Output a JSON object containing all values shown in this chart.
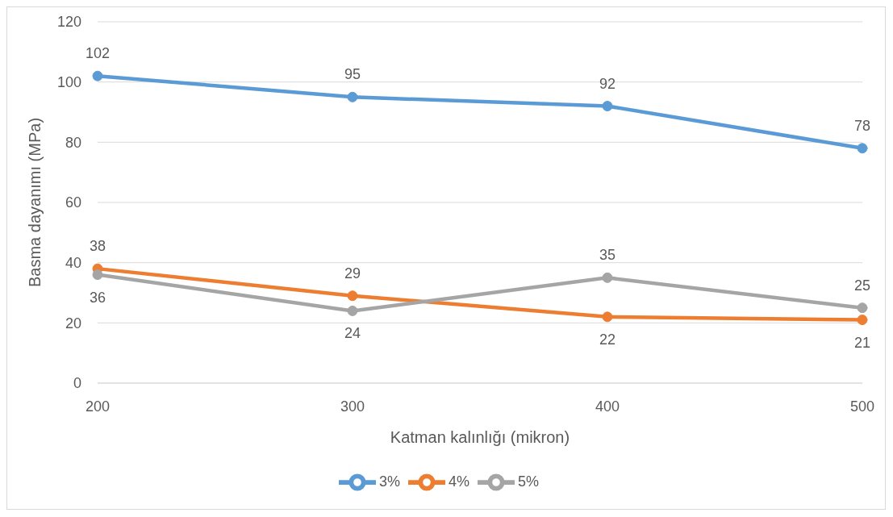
{
  "chart_data": {
    "type": "line",
    "xlabel": "Katman kalınlığı (mikron)",
    "ylabel": "Basma dayanımı (MPa)",
    "categories": [
      "200",
      "300",
      "400",
      "500"
    ],
    "series": [
      {
        "name": "3%",
        "color": "#5b9bd5",
        "values": [
          102,
          95,
          92,
          78
        ]
      },
      {
        "name": "4%",
        "color": "#ed7d31",
        "values": [
          38,
          29,
          22,
          21
        ]
      },
      {
        "name": "5%",
        "color": "#a5a5a5",
        "values": [
          36,
          24,
          35,
          25
        ]
      }
    ],
    "ylim": [
      0,
      120
    ],
    "yticks": [
      0,
      20,
      40,
      60,
      80,
      100,
      120
    ],
    "grid": "y",
    "legend": "bottom",
    "marker": "circle",
    "line_style": "solid",
    "data_labels": true
  }
}
